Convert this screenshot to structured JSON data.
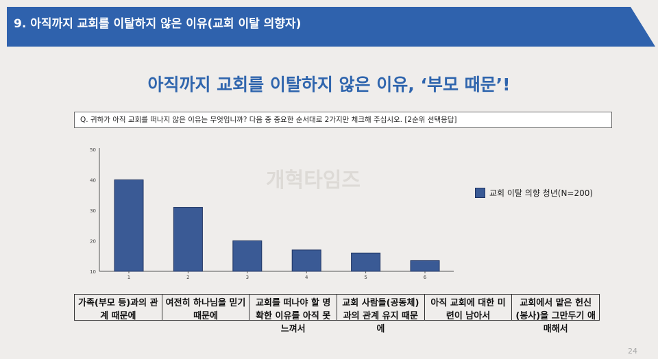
{
  "header": {
    "title": "9. 아직까지 교회를 이탈하지 않은 이유(교회 이탈 의향자)"
  },
  "headline": "아직까지 교회를 이탈하지 않은 이유, ‘부모 때문’!",
  "question": "Q. 귀하가 아직 교회를 떠나지 않은 이유는 무엇입니까? 다음 중 중요한 순서대로 2가지만 체크해 주십시오. [2순위 선택응답]",
  "watermark": "개혁타임즈",
  "page_number": "24",
  "colors": {
    "banner": "#2f62ad",
    "bar": "#3a5a95",
    "headline": "#2f65ad"
  },
  "chart_data": {
    "type": "bar",
    "x_ticks": [
      "1",
      "2",
      "3",
      "4",
      "5",
      "6"
    ],
    "categories": [
      "가족(부모 등)과의 관계 때문에",
      "여전히 하나님을 믿기 때문에",
      "교회를 떠나야 할 명확한 이유를 아직 못 느껴서",
      "교회 사람들(공동체)과의 관계 유지 때문에",
      "아직 교회에 대한 미련이 남아서",
      "교회에서 맡은 헌신(봉사)을 그만두기 애매해서"
    ],
    "series": [
      {
        "name": "교회 이탈 의향 청년(N=200)",
        "values": [
          40,
          31,
          20,
          17,
          16,
          13.5
        ]
      }
    ],
    "ylim": [
      10,
      50
    ],
    "y_ticks": [
      "10",
      "20",
      "30",
      "40",
      "50"
    ],
    "legend_position": "right",
    "grid": false
  },
  "category_labels": [
    "가족(부모 등)과의 관계 때문에",
    "여전히 하나님을 믿기 때문에",
    "교회를 떠나야 할 명확한 이유를 아직 못 느껴서",
    "교회 사람들(공동체)과의 관계 유지 때문에",
    "아직 교회에 대한 미련이 남아서",
    "교회에서 맡은 헌신(봉사)을 그만두기 애매해서"
  ]
}
